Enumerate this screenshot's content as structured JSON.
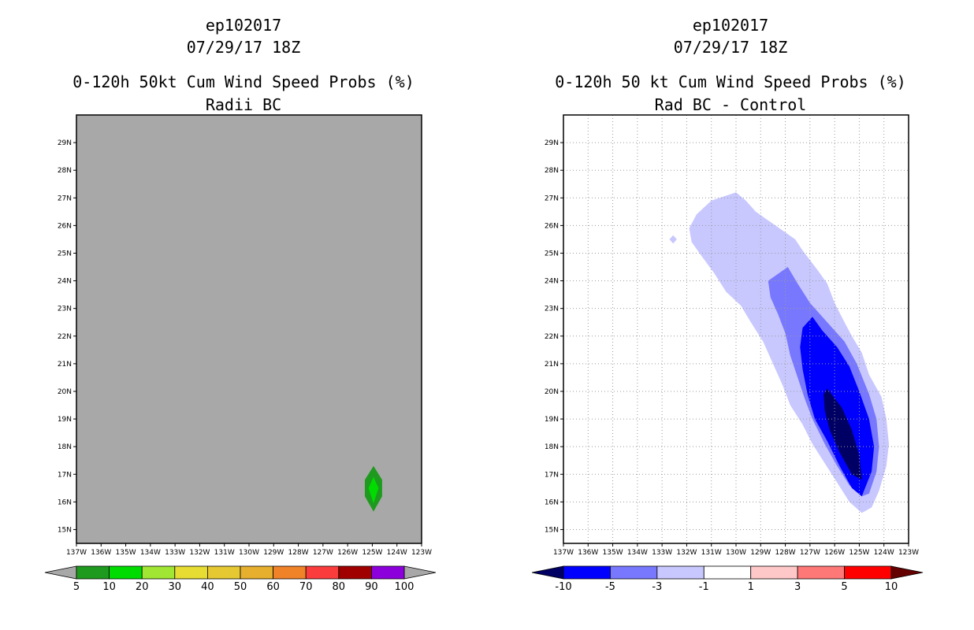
{
  "chart_data": [
    {
      "type": "heatmap",
      "id": "left",
      "title_lines": [
        "ep102017",
        "07/29/17 18Z",
        "0-120h 50kt Cum Wind Speed Probs (%)",
        "Radii BC"
      ],
      "background_color": "#a8a8a8",
      "grid": false,
      "x": {
        "range": [
          -137,
          -123
        ],
        "ticks": [
          -137,
          -136,
          -135,
          -134,
          -133,
          -132,
          -131,
          -130,
          -129,
          -128,
          -127,
          -126,
          -125,
          -124,
          -123
        ],
        "tick_labels": [
          "137W",
          "136W",
          "135W",
          "134W",
          "133W",
          "132W",
          "131W",
          "130W",
          "129W",
          "128W",
          "127W",
          "126W",
          "125W",
          "124W",
          "123W"
        ]
      },
      "y": {
        "range": [
          14.5,
          30
        ],
        "ticks": [
          15,
          16,
          17,
          18,
          19,
          20,
          21,
          22,
          23,
          24,
          25,
          26,
          27,
          28,
          29
        ],
        "tick_labels": [
          "15N",
          "16N",
          "17N",
          "18N",
          "19N",
          "20N",
          "21N",
          "22N",
          "23N",
          "24N",
          "25N",
          "26N",
          "27N",
          "28N",
          "29N"
        ]
      },
      "contours": [
        {
          "level": "5-10",
          "color": "#1e9a1e",
          "points": [
            [
              -124.95,
              17.3
            ],
            [
              -124.6,
              16.8
            ],
            [
              -124.6,
              16.2
            ],
            [
              -124.95,
              15.65
            ],
            [
              -125.3,
              16.2
            ],
            [
              -125.3,
              16.8
            ]
          ]
        },
        {
          "level": "10-20",
          "color": "#00dc00",
          "points": [
            [
              -124.95,
              16.9
            ],
            [
              -124.75,
              16.5
            ],
            [
              -124.95,
              15.95
            ],
            [
              -125.15,
              16.5
            ]
          ]
        }
      ],
      "colorbar": {
        "levels": [
          "5",
          "10",
          "20",
          "30",
          "40",
          "50",
          "60",
          "70",
          "80",
          "90",
          "100"
        ],
        "colors": [
          "#1e9a1e",
          "#00dc00",
          "#a0e632",
          "#e6dc32",
          "#e6c832",
          "#e6af2d",
          "#f08228",
          "#fa3c3c",
          "#a00000",
          "#8c00dc"
        ],
        "under_color": "#a8a8a8",
        "over_color": "#a8a8a8"
      }
    },
    {
      "type": "heatmap",
      "id": "right",
      "title_lines": [
        "ep102017",
        "07/29/17 18Z",
        "0-120h 50 kt Cum Wind Speed Probs (%)",
        "Rad BC - Control"
      ],
      "background_color": "#ffffff",
      "grid": true,
      "x": {
        "range": [
          -137,
          -123
        ],
        "ticks": [
          -137,
          -136,
          -135,
          -134,
          -133,
          -132,
          -131,
          -130,
          -129,
          -128,
          -127,
          -126,
          -125,
          -124,
          -123
        ],
        "tick_labels": [
          "137W",
          "136W",
          "135W",
          "134W",
          "133W",
          "132W",
          "131W",
          "130W",
          "129W",
          "128W",
          "127W",
          "126W",
          "125W",
          "124W",
          "123W"
        ]
      },
      "y": {
        "range": [
          14.5,
          30
        ],
        "ticks": [
          15,
          16,
          17,
          18,
          19,
          20,
          21,
          22,
          23,
          24,
          25,
          26,
          27,
          28,
          29
        ],
        "tick_labels": [
          "15N",
          "16N",
          "17N",
          "18N",
          "19N",
          "20N",
          "21N",
          "22N",
          "23N",
          "24N",
          "25N",
          "26N",
          "27N",
          "28N",
          "29N"
        ]
      },
      "contours": [
        {
          "level": "-3 to -1",
          "color": "#c8c8ff",
          "points": [
            [
              -131.6,
              26.4
            ],
            [
              -131.0,
              26.9
            ],
            [
              -130.0,
              27.2
            ],
            [
              -129.6,
              26.9
            ],
            [
              -129.2,
              26.5
            ],
            [
              -128.4,
              26.0
            ],
            [
              -127.6,
              25.5
            ],
            [
              -127.3,
              25.1
            ],
            [
              -126.7,
              24.4
            ],
            [
              -126.3,
              23.9
            ],
            [
              -126.0,
              23.2
            ],
            [
              -125.6,
              22.5
            ],
            [
              -125.3,
              22.0
            ],
            [
              -124.9,
              21.4
            ],
            [
              -124.6,
              20.6
            ],
            [
              -124.1,
              19.8
            ],
            [
              -123.9,
              19.0
            ],
            [
              -123.8,
              18.1
            ],
            [
              -123.9,
              17.3
            ],
            [
              -124.2,
              16.4
            ],
            [
              -124.5,
              15.8
            ],
            [
              -124.9,
              15.6
            ],
            [
              -125.4,
              16.0
            ],
            [
              -125.9,
              16.7
            ],
            [
              -126.4,
              17.4
            ],
            [
              -126.9,
              18.1
            ],
            [
              -127.3,
              18.8
            ],
            [
              -127.8,
              19.5
            ],
            [
              -128.1,
              20.2
            ],
            [
              -128.5,
              21.0
            ],
            [
              -128.9,
              21.8
            ],
            [
              -129.4,
              22.5
            ],
            [
              -129.8,
              23.1
            ],
            [
              -130.4,
              23.6
            ],
            [
              -130.9,
              24.3
            ],
            [
              -131.4,
              24.9
            ],
            [
              -131.8,
              25.4
            ],
            [
              -131.9,
              25.9
            ]
          ]
        },
        {
          "level": "-3 to -1",
          "color": "#c8c8ff",
          "points": [
            [
              -132.55,
              25.65
            ],
            [
              -132.4,
              25.5
            ],
            [
              -132.55,
              25.35
            ],
            [
              -132.7,
              25.5
            ]
          ]
        },
        {
          "level": "-5 to -3",
          "color": "#7878ff",
          "points": [
            [
              -127.9,
              24.5
            ],
            [
              -127.5,
              23.9
            ],
            [
              -127.0,
              23.2
            ],
            [
              -126.3,
              22.5
            ],
            [
              -125.6,
              21.8
            ],
            [
              -125.1,
              21.0
            ],
            [
              -124.6,
              19.9
            ],
            [
              -124.3,
              19.0
            ],
            [
              -124.2,
              18.0
            ],
            [
              -124.3,
              17.1
            ],
            [
              -124.6,
              16.3
            ],
            [
              -124.9,
              16.2
            ],
            [
              -125.4,
              16.6
            ],
            [
              -125.9,
              17.3
            ],
            [
              -126.4,
              18.1
            ],
            [
              -126.9,
              19.0
            ],
            [
              -127.2,
              19.7
            ],
            [
              -127.5,
              20.5
            ],
            [
              -127.8,
              21.3
            ],
            [
              -128.0,
              22.1
            ],
            [
              -128.3,
              22.8
            ],
            [
              -128.6,
              23.4
            ],
            [
              -128.7,
              24.0
            ]
          ]
        },
        {
          "level": "-10 to -5",
          "color": "#0000ff",
          "points": [
            [
              -126.9,
              22.7
            ],
            [
              -126.5,
              22.2
            ],
            [
              -125.9,
              21.6
            ],
            [
              -125.4,
              20.9
            ],
            [
              -125.0,
              20.0
            ],
            [
              -124.6,
              19.0
            ],
            [
              -124.4,
              18.0
            ],
            [
              -124.5,
              17.1
            ],
            [
              -124.9,
              16.2
            ],
            [
              -125.3,
              16.5
            ],
            [
              -125.8,
              17.3
            ],
            [
              -126.3,
              18.2
            ],
            [
              -126.8,
              19.0
            ],
            [
              -127.1,
              19.9
            ],
            [
              -127.3,
              20.8
            ],
            [
              -127.4,
              21.6
            ],
            [
              -127.3,
              22.3
            ]
          ]
        },
        {
          "level": "< -10",
          "color": "#000064",
          "points": [
            [
              -126.3,
              20.1
            ],
            [
              -125.7,
              19.4
            ],
            [
              -125.3,
              18.6
            ],
            [
              -125.0,
              17.7
            ],
            [
              -124.9,
              16.8
            ],
            [
              -125.3,
              17.0
            ],
            [
              -125.8,
              17.8
            ],
            [
              -126.2,
              18.6
            ],
            [
              -126.4,
              19.3
            ],
            [
              -126.45,
              19.9
            ]
          ]
        }
      ],
      "colorbar": {
        "levels": [
          "-10",
          "-5",
          "-3",
          "-1",
          "1",
          "3",
          "5",
          "10"
        ],
        "colors": [
          "#0000ff",
          "#7878ff",
          "#c8c8ff",
          "#ffffff",
          "#ffc8c8",
          "#ff7878",
          "#ff0000"
        ],
        "under_color": "#000064",
        "over_color": "#640000"
      }
    }
  ]
}
